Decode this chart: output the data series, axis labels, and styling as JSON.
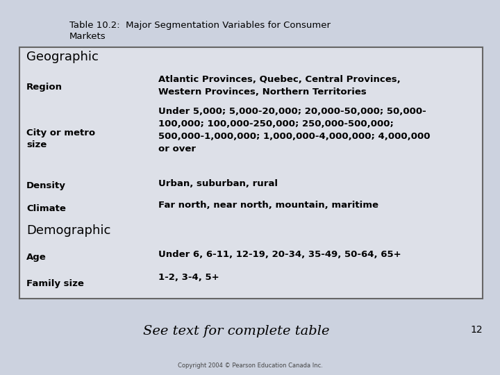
{
  "title_line1": "Table 10.2:  Major Segmentation Variables for Consumer",
  "title_line2": "Markets",
  "bg_color": "#ccd2df",
  "table_bg": "#dde0e8",
  "table_border_color": "#666666",
  "footer_italic": "See text for complete table",
  "footer_page": "12",
  "copyright": "Copyright 2004 © Pearson Education Canada Inc.",
  "rows": [
    {
      "type": "header",
      "col1": "Geographic",
      "col2": ""
    },
    {
      "type": "data",
      "col1": "Region",
      "col2": "Atlantic Provinces, Quebec, Central Provinces,\nWestern Provinces, Northern Territories"
    },
    {
      "type": "data",
      "col1": "City or metro\nsize",
      "col2": "Under 5,000; 5,000-20,000; 20,000-50,000; 50,000-\n100,000; 100,000-250,000; 250,000-500,000;\n500,000-1,000,000; 1,000,000-4,000,000; 4,000,000\nor over"
    },
    {
      "type": "data",
      "col1": "Density",
      "col2": "Urban, suburban, rural"
    },
    {
      "type": "data",
      "col1": "Climate",
      "col2": "Far north, near north, mountain, maritime"
    },
    {
      "type": "header",
      "col1": "Demographic",
      "col2": ""
    },
    {
      "type": "data",
      "col1": "Age",
      "col2": "Under 6, 6-11, 12-19, 20-34, 35-49, 50-64, 65+"
    },
    {
      "type": "data",
      "col1": "Family size",
      "col2": "1-2, 3-4, 5+"
    }
  ],
  "title_fontsize": 9.5,
  "header_fontsize": 13.0,
  "data_fontsize": 9.5,
  "footer_fontsize": 14.0,
  "page_fontsize": 10.0,
  "copyright_fontsize": 6.0
}
